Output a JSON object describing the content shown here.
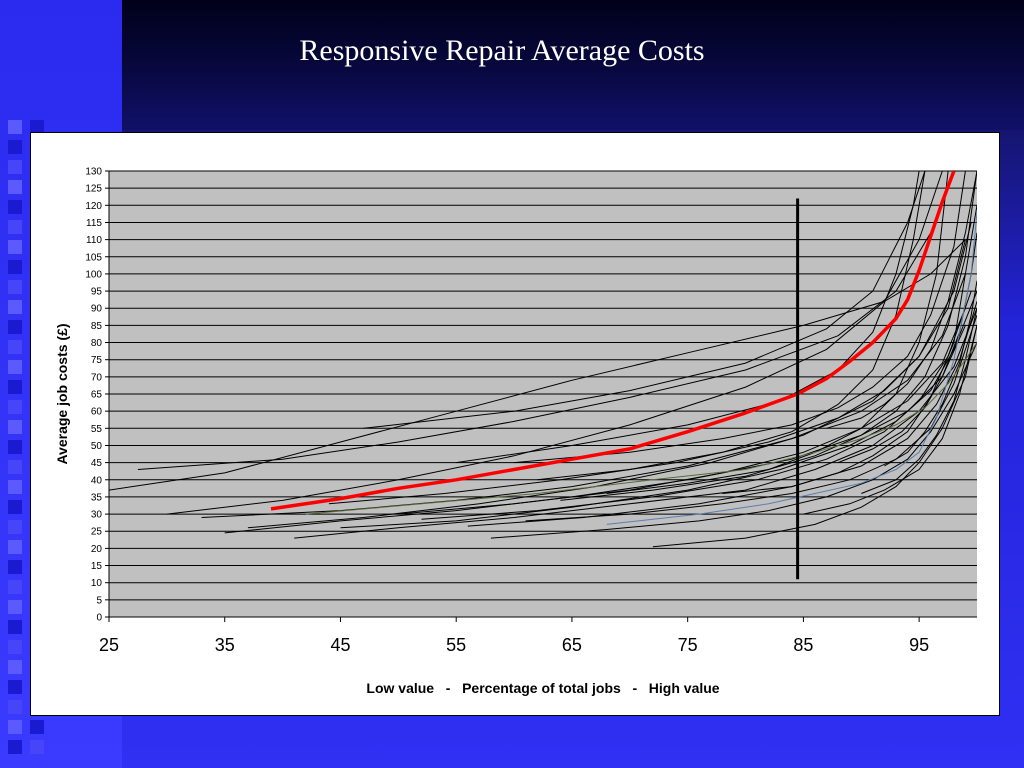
{
  "slide": {
    "title": "Responsive Repair Average Costs"
  },
  "colors": {
    "plot_background": "#c0c0c0",
    "gridline": "#000000",
    "highlight_series": "#ff0000",
    "other_series": "#000000",
    "reference_line": "#000000"
  },
  "chart_data": {
    "type": "line",
    "title": "",
    "xlabel": "Low value   -   Percentage of total jobs   -   High value",
    "ylabel": "Average job costs (£)",
    "xlim": [
      25,
      100
    ],
    "ylim": [
      0,
      130
    ],
    "x_ticks": [
      25,
      35,
      45,
      55,
      65,
      75,
      85,
      95
    ],
    "y_ticks": [
      0,
      5,
      10,
      15,
      20,
      25,
      30,
      35,
      40,
      45,
      50,
      55,
      60,
      65,
      70,
      75,
      80,
      85,
      90,
      95,
      100,
      105,
      110,
      115,
      120,
      125,
      130
    ],
    "grid": true,
    "legend": "none",
    "reference_line": {
      "x": 84.5,
      "y_range": [
        11,
        122
      ],
      "color": "#000000"
    },
    "highlight_series": {
      "color": "#ff0000",
      "points": [
        [
          39,
          31.5
        ],
        [
          45,
          34.5
        ],
        [
          50,
          37.5
        ],
        [
          55,
          40
        ],
        [
          60,
          43
        ],
        [
          65,
          46
        ],
        [
          70,
          49
        ],
        [
          75,
          54
        ],
        [
          80,
          59.5
        ],
        [
          84.5,
          65
        ],
        [
          87,
          69.5
        ],
        [
          89,
          74.5
        ],
        [
          91,
          80
        ],
        [
          93,
          87
        ],
        [
          94,
          92.5
        ],
        [
          95,
          101
        ],
        [
          96,
          111
        ],
        [
          97,
          121
        ],
        [
          98,
          130
        ]
      ]
    },
    "series": [
      {
        "color": "#000000",
        "points": [
          [
            25,
            37
          ],
          [
            35,
            42
          ],
          [
            45,
            51
          ],
          [
            55,
            60
          ],
          [
            65,
            69
          ],
          [
            75,
            77
          ],
          [
            85,
            85
          ],
          [
            92,
            92
          ],
          [
            96,
            100
          ],
          [
            99,
            110
          ]
        ]
      },
      {
        "color": "#000000",
        "points": [
          [
            27.5,
            43
          ],
          [
            40,
            46
          ],
          [
            50,
            51
          ],
          [
            60,
            57
          ],
          [
            70,
            64
          ],
          [
            80,
            72
          ],
          [
            88,
            82
          ],
          [
            93,
            95
          ],
          [
            96,
            112
          ],
          [
            98,
            130
          ]
        ]
      },
      {
        "color": "#000000",
        "points": [
          [
            30,
            30
          ],
          [
            40,
            34
          ],
          [
            50,
            40
          ],
          [
            60,
            47
          ],
          [
            70,
            56
          ],
          [
            80,
            67
          ],
          [
            87,
            78
          ],
          [
            92,
            92
          ],
          [
            95,
            110
          ],
          [
            97,
            130
          ]
        ]
      },
      {
        "color": "#000000",
        "points": [
          [
            33,
            29
          ],
          [
            45,
            31
          ],
          [
            55,
            34
          ],
          [
            65,
            38
          ],
          [
            75,
            44
          ],
          [
            84,
            52
          ],
          [
            90,
            60
          ],
          [
            94,
            69
          ],
          [
            97,
            82
          ],
          [
            99,
            100
          ]
        ]
      },
      {
        "color": "#000000",
        "points": [
          [
            35,
            24.5
          ],
          [
            45,
            28
          ],
          [
            55,
            31
          ],
          [
            65,
            35
          ],
          [
            75,
            40
          ],
          [
            84,
            46
          ],
          [
            90,
            53
          ],
          [
            94,
            60
          ],
          [
            97,
            70
          ],
          [
            99,
            85
          ]
        ]
      },
      {
        "color": "#000000",
        "points": [
          [
            41,
            23
          ],
          [
            50,
            26
          ],
          [
            60,
            29
          ],
          [
            70,
            33
          ],
          [
            80,
            37
          ],
          [
            86,
            43
          ],
          [
            91,
            50
          ],
          [
            95,
            60
          ],
          [
            98,
            73
          ],
          [
            100,
            90
          ]
        ]
      },
      {
        "color": "#000000",
        "points": [
          [
            45,
            26
          ],
          [
            55,
            28
          ],
          [
            65,
            32
          ],
          [
            75,
            37
          ],
          [
            83,
            43
          ],
          [
            89,
            50
          ],
          [
            93,
            57
          ],
          [
            96,
            66
          ],
          [
            98,
            78
          ],
          [
            100,
            95
          ]
        ]
      },
      {
        "color": "#000000",
        "points": [
          [
            50,
            30
          ],
          [
            60,
            33
          ],
          [
            70,
            37
          ],
          [
            78,
            42
          ],
          [
            85,
            48
          ],
          [
            90,
            55
          ],
          [
            94,
            63
          ],
          [
            97,
            74
          ],
          [
            99,
            90
          ]
        ]
      },
      {
        "color": "#000000",
        "points": [
          [
            58,
            23
          ],
          [
            68,
            25.5
          ],
          [
            76,
            28
          ],
          [
            82,
            31
          ],
          [
            87,
            35
          ],
          [
            91,
            40
          ],
          [
            94,
            46
          ],
          [
            96,
            54
          ],
          [
            98,
            65
          ],
          [
            100,
            80
          ]
        ]
      },
      {
        "color": "#000000",
        "points": [
          [
            72,
            20.5
          ],
          [
            80,
            23
          ],
          [
            86,
            27
          ],
          [
            90,
            32
          ],
          [
            93,
            38
          ],
          [
            95,
            45
          ],
          [
            97,
            55
          ],
          [
            99,
            70
          ],
          [
            100,
            85
          ]
        ]
      },
      {
        "color": "#000000",
        "points": [
          [
            47,
            55
          ],
          [
            60,
            60
          ],
          [
            70,
            66
          ],
          [
            80,
            74
          ],
          [
            87,
            84
          ],
          [
            91,
            95
          ],
          [
            94,
            115
          ],
          [
            95.5,
            130
          ]
        ]
      },
      {
        "color": "#000000",
        "points": [
          [
            55,
            45
          ],
          [
            65,
            50
          ],
          [
            75,
            56
          ],
          [
            83,
            63
          ],
          [
            88,
            72
          ],
          [
            91,
            83
          ],
          [
            93,
            100
          ],
          [
            94.5,
            120
          ],
          [
            95,
            130
          ]
        ]
      },
      {
        "color": "#000000",
        "points": [
          [
            62,
            40
          ],
          [
            70,
            43
          ],
          [
            78,
            48
          ],
          [
            84,
            54
          ],
          [
            88,
            62
          ],
          [
            91,
            72
          ],
          [
            93,
            88
          ],
          [
            94.5,
            110
          ],
          [
            95.5,
            130
          ]
        ]
      },
      {
        "color": "#000000",
        "points": [
          [
            68,
            36
          ],
          [
            75,
            39
          ],
          [
            82,
            43
          ],
          [
            86,
            48
          ],
          [
            90,
            55
          ],
          [
            93,
            65
          ],
          [
            95,
            80
          ],
          [
            96.5,
            100
          ],
          [
            97.5,
            130
          ]
        ]
      },
      {
        "color": "#000000",
        "points": [
          [
            78,
            36
          ],
          [
            84,
            38
          ],
          [
            88,
            42
          ],
          [
            91,
            47
          ],
          [
            94,
            54
          ],
          [
            96,
            64
          ],
          [
            98,
            80
          ],
          [
            99,
            100
          ],
          [
            100,
            120
          ]
        ]
      },
      {
        "color": "#000000",
        "points": [
          [
            61,
            28
          ],
          [
            70,
            30
          ],
          [
            78,
            33
          ],
          [
            84,
            36
          ],
          [
            89,
            40
          ],
          [
            93,
            46
          ],
          [
            96,
            55
          ],
          [
            98,
            68
          ],
          [
            100,
            88
          ]
        ]
      },
      {
        "color": "#000000",
        "points": [
          [
            85,
            30
          ],
          [
            89,
            33
          ],
          [
            92,
            37
          ],
          [
            95,
            43
          ],
          [
            97,
            52
          ],
          [
            98.5,
            65
          ],
          [
            100,
            85
          ]
        ]
      },
      {
        "color": "#000000",
        "points": [
          [
            37,
            26
          ],
          [
            47,
            29
          ],
          [
            57,
            33
          ],
          [
            67,
            38
          ],
          [
            77,
            45
          ],
          [
            85,
            53
          ],
          [
            91,
            63
          ],
          [
            95,
            76
          ],
          [
            98,
            95
          ],
          [
            99.5,
            115
          ]
        ]
      },
      {
        "color": "#000000",
        "points": [
          [
            52,
            28.5
          ],
          [
            62,
            31
          ],
          [
            72,
            35
          ],
          [
            81,
            40
          ],
          [
            87,
            46
          ],
          [
            92,
            54
          ],
          [
            95,
            63
          ],
          [
            97.5,
            76
          ],
          [
            99.5,
            95
          ]
        ]
      },
      {
        "color": "#000000",
        "points": [
          [
            44,
            33
          ],
          [
            54,
            36
          ],
          [
            64,
            40
          ],
          [
            74,
            45
          ],
          [
            82,
            51
          ],
          [
            88,
            58
          ],
          [
            92,
            66
          ],
          [
            95,
            76
          ],
          [
            97.5,
            90
          ],
          [
            99,
            110
          ]
        ]
      },
      {
        "color": "#000000",
        "points": [
          [
            56,
            26.5
          ],
          [
            66,
            29
          ],
          [
            76,
            33
          ],
          [
            84,
            38
          ],
          [
            90,
            44
          ],
          [
            94,
            52
          ],
          [
            96.5,
            62
          ],
          [
            98.5,
            75
          ],
          [
            100,
            92
          ]
        ]
      },
      {
        "color": "#000000",
        "points": [
          [
            64,
            34
          ],
          [
            72,
            37
          ],
          [
            80,
            41
          ],
          [
            86,
            47
          ],
          [
            90,
            53
          ],
          [
            93,
            60
          ],
          [
            95.5,
            70
          ],
          [
            97.5,
            85
          ],
          [
            99,
            105
          ],
          [
            100,
            130
          ]
        ]
      },
      {
        "color": "#000000",
        "points": [
          [
            90,
            36
          ],
          [
            93,
            40
          ],
          [
            95,
            46
          ],
          [
            96.5,
            53
          ],
          [
            98,
            63
          ],
          [
            99,
            75
          ],
          [
            100,
            90
          ]
        ]
      },
      {
        "color": "#000000",
        "points": [
          [
            92,
            44
          ],
          [
            94,
            48
          ],
          [
            95.5,
            54
          ],
          [
            97,
            62
          ],
          [
            98.5,
            74
          ],
          [
            99.5,
            88
          ],
          [
            100,
            98
          ]
        ]
      },
      {
        "color": "#000000",
        "points": [
          [
            87,
            55
          ],
          [
            90,
            58
          ],
          [
            92,
            62
          ],
          [
            94,
            68
          ],
          [
            96,
            78
          ],
          [
            97.5,
            92
          ],
          [
            99,
            112
          ],
          [
            100,
            130
          ]
        ]
      },
      {
        "color": "#000000",
        "points": [
          [
            88,
            45
          ],
          [
            91,
            49
          ],
          [
            93.5,
            54
          ],
          [
            95.5,
            61
          ],
          [
            97,
            70
          ],
          [
            98.5,
            83
          ],
          [
            99.5,
            100
          ],
          [
            100,
            112
          ]
        ]
      },
      {
        "color": "#000000",
        "points": [
          [
            60,
            45
          ],
          [
            70,
            48
          ],
          [
            78,
            52
          ],
          [
            84,
            56
          ],
          [
            88,
            61
          ],
          [
            91,
            67
          ],
          [
            94,
            76
          ],
          [
            96,
            88
          ],
          [
            98,
            108
          ],
          [
            99,
            130
          ]
        ]
      },
      {
        "color": "#5a7fb0",
        "points": [
          [
            68,
            27
          ],
          [
            76,
            30
          ],
          [
            82,
            33
          ],
          [
            86,
            36
          ],
          [
            90,
            39
          ],
          [
            93,
            43
          ],
          [
            95,
            48
          ],
          [
            96.5,
            58
          ],
          [
            98,
            75
          ],
          [
            99.5,
            100
          ],
          [
            100,
            118
          ]
        ]
      },
      {
        "color": "#5a6a3a",
        "points": [
          [
            42,
            30
          ],
          [
            52,
            33
          ],
          [
            62,
            36
          ],
          [
            72,
            40
          ],
          [
            80,
            43
          ],
          [
            86,
            48
          ],
          [
            90,
            52
          ],
          [
            93,
            56
          ],
          [
            95.5,
            61
          ],
          [
            97.5,
            68
          ],
          [
            99,
            75
          ],
          [
            100,
            80
          ]
        ]
      }
    ]
  }
}
